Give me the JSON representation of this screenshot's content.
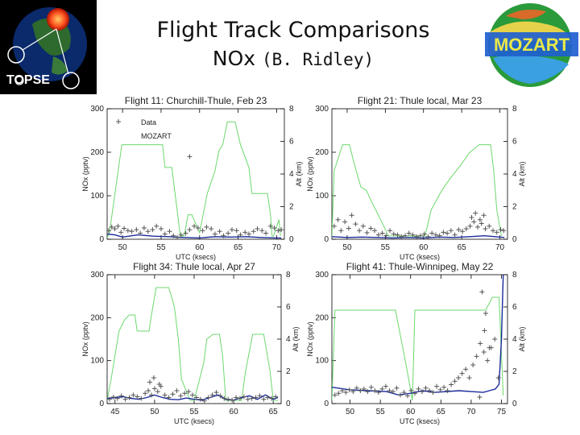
{
  "slide": {
    "title": "Flight Track Comparisons",
    "subtitle_main": "NOx",
    "subtitle_author": "(B. Ridley)"
  },
  "logos": {
    "left_text": "TOPSE",
    "right_text": "MOZART"
  },
  "colors": {
    "data_marker": "#555555",
    "mozart_line": "#1a2a9a",
    "altitude_line": "#6cd96c",
    "axis": "#000000"
  },
  "chart_data": [
    {
      "type": "line",
      "title": "Flight 11: Churchill-Thule, Feb 23",
      "xlabel": "UTC (ksecs)",
      "ylabel": "NOx (pptv)",
      "y2label": "Alt (km)",
      "xlim": [
        48,
        71
      ],
      "ylim": [
        0,
        300
      ],
      "y2lim": [
        0,
        8
      ],
      "xticks": [
        50,
        55,
        60,
        65,
        70
      ],
      "yticks": [
        0,
        100,
        200,
        300
      ],
      "y2ticks": [
        0,
        2,
        4,
        6,
        8
      ],
      "legend": [
        "Data",
        "MOZART"
      ],
      "series": [
        {
          "name": "Altitude",
          "axis": "y2",
          "x": [
            48,
            48.3,
            49.9,
            53.5,
            55.2,
            55.5,
            56.4,
            57.5,
            58,
            58.5,
            59,
            60,
            61,
            62,
            62.5,
            63,
            63.6,
            64.6,
            65.3,
            66.4,
            66.8,
            67.5,
            68.8,
            69.2,
            69.4,
            69.6,
            70.3,
            70.5
          ],
          "values": [
            0.1,
            0.4,
            5.8,
            5.8,
            5.8,
            4.4,
            4.4,
            0.2,
            0.2,
            1.5,
            1.5,
            0.4,
            2.8,
            4.2,
            5.4,
            5.8,
            7.2,
            7.2,
            5.8,
            4.4,
            2.8,
            2.8,
            2.8,
            1.5,
            0.2,
            0.2,
            1.2,
            0.2
          ]
        },
        {
          "name": "MOZART",
          "axis": "y",
          "x": [
            48,
            49,
            50,
            52,
            54,
            56,
            58,
            60,
            62,
            64,
            66,
            68,
            70,
            70.6
          ],
          "values": [
            12,
            10,
            5,
            10,
            7,
            6,
            4,
            3,
            6,
            5,
            6,
            4,
            3,
            3
          ]
        },
        {
          "name": "Data",
          "axis": "y",
          "kind": "scatter",
          "x": [
            48.2,
            48.6,
            49.0,
            49.4,
            49.8,
            50.2,
            50.7,
            51.2,
            51.8,
            52.3,
            52.8,
            53.3,
            53.9,
            54.4,
            55.0,
            55.5,
            56.1,
            56.6,
            57.1,
            57.6,
            58.2,
            58.7,
            59.3,
            59.8,
            60.4,
            60.9,
            61.5,
            62.0,
            62.6,
            63.1,
            63.7,
            64.2,
            64.8,
            65.3,
            65.9,
            66.4,
            67.0,
            67.5,
            68.1,
            68.6,
            69.2,
            69.7,
            70.2,
            70.6,
            58.7
          ],
          "values": [
            20,
            28,
            24,
            30,
            16,
            25,
            20,
            18,
            22,
            14,
            26,
            18,
            22,
            30,
            24,
            12,
            18,
            8,
            4,
            10,
            14,
            22,
            30,
            26,
            20,
            28,
            24,
            12,
            18,
            8,
            14,
            22,
            20,
            10,
            16,
            12,
            18,
            24,
            20,
            14,
            30,
            26,
            20,
            22,
            190
          ]
        }
      ]
    },
    {
      "type": "line",
      "title": "Flight 21: Thule local, Mar 23",
      "xlabel": "UTC (ksecs)",
      "ylabel": "NOx (pptv)",
      "y2label": "Alt (km)",
      "xlim": [
        48,
        71
      ],
      "ylim": [
        0,
        300
      ],
      "y2lim": [
        0,
        8
      ],
      "xticks": [
        50,
        55,
        60,
        65,
        70
      ],
      "yticks": [
        0,
        100,
        200,
        300
      ],
      "y2ticks": [
        0,
        2,
        4,
        6,
        8
      ],
      "legend": [],
      "series": [
        {
          "name": "Altitude",
          "axis": "y2",
          "x": [
            48,
            48.3,
            49.4,
            50.3,
            51,
            51.8,
            52.5,
            53.2,
            54.6,
            55.4,
            56,
            60.2,
            61,
            62.4,
            63.6,
            64.8,
            66,
            67.3,
            68.8,
            69.2,
            69.6,
            70.2
          ],
          "values": [
            0.1,
            4.2,
            5.8,
            5.8,
            4.5,
            3.2,
            3.0,
            2.3,
            1.0,
            0.2,
            0.2,
            0.2,
            1.8,
            3.0,
            3.8,
            4.5,
            5.3,
            5.8,
            5.8,
            4.2,
            1.8,
            0.2
          ]
        },
        {
          "name": "MOZART",
          "axis": "y",
          "x": [
            48,
            50,
            52,
            54,
            56,
            58,
            60,
            62,
            64,
            66,
            68,
            70,
            70.6
          ],
          "values": [
            6,
            4,
            5,
            4,
            3,
            4,
            3,
            5,
            4,
            6,
            8,
            5,
            4
          ]
        },
        {
          "name": "Data",
          "axis": "y",
          "kind": "scatter",
          "x": [
            48.3,
            48.8,
            49.2,
            49.7,
            50.2,
            50.6,
            51.1,
            51.6,
            52.1,
            52.6,
            53.1,
            53.6,
            54.1,
            54.6,
            55.1,
            55.6,
            56.1,
            56.6,
            57.1,
            57.6,
            58.1,
            58.6,
            59.1,
            59.6,
            60.1,
            60.6,
            61.1,
            61.6,
            62.1,
            62.6,
            63.1,
            63.6,
            64.1,
            64.6,
            65.1,
            65.6,
            66.1,
            66.6,
            67.1,
            67.6,
            68.1,
            68.6,
            69.1,
            69.6,
            70.1,
            70.5,
            66.3,
            66.8,
            67.4,
            67.9
          ],
          "values": [
            30,
            45,
            20,
            40,
            25,
            55,
            35,
            20,
            30,
            15,
            25,
            20,
            10,
            14,
            8,
            20,
            12,
            10,
            6,
            8,
            14,
            10,
            6,
            8,
            12,
            6,
            14,
            10,
            8,
            16,
            14,
            20,
            10,
            22,
            18,
            24,
            30,
            40,
            28,
            36,
            24,
            30,
            20,
            16,
            22,
            20,
            50,
            60,
            45,
            55
          ]
        }
      ]
    },
    {
      "type": "line",
      "title": "Flight 34: Thule local, Apr 27",
      "xlabel": "UTC (ksecs)",
      "ylabel": "NOx (pptv)",
      "y2label": "Alt (km)",
      "xlim": [
        44,
        66
      ],
      "ylim": [
        0,
        300
      ],
      "y2lim": [
        0,
        8
      ],
      "xticks": [
        45,
        50,
        55,
        60,
        65
      ],
      "yticks": [
        0,
        100,
        200,
        300
      ],
      "y2ticks": [
        0,
        2,
        4,
        6,
        8
      ],
      "legend": [],
      "series": [
        {
          "name": "Altitude",
          "axis": "y2",
          "x": [
            44,
            44.5,
            45.5,
            46.2,
            46.8,
            47.5,
            47.8,
            49.3,
            49.6,
            50.2,
            51.8,
            52.5,
            53,
            53.4,
            54.5,
            55.0,
            56.2,
            56.6,
            57.4,
            58.2,
            58.6,
            59.0,
            61.0,
            61.5,
            62.4,
            62.9,
            63.8,
            64.6,
            65.0,
            65.6
          ],
          "values": [
            0.2,
            1.5,
            4.5,
            5.2,
            5.5,
            5.5,
            4.5,
            4.5,
            5.5,
            7.2,
            7.2,
            6.0,
            4.0,
            1.5,
            0.2,
            0.2,
            2.5,
            4.0,
            4.3,
            4.3,
            3.0,
            0.2,
            0.2,
            2.0,
            4.3,
            4.3,
            4.3,
            2.0,
            0.2,
            0.2
          ]
        },
        {
          "name": "MOZART",
          "axis": "y",
          "x": [
            44,
            45,
            46,
            47,
            48,
            49,
            50,
            51,
            52,
            53,
            54,
            55,
            56,
            57,
            58,
            59,
            60,
            61,
            62,
            63,
            64,
            65,
            65.6
          ],
          "values": [
            12,
            14,
            16,
            12,
            10,
            14,
            20,
            14,
            10,
            9,
            13,
            10,
            8,
            14,
            20,
            10,
            8,
            14,
            18,
            10,
            20,
            10,
            14
          ]
        },
        {
          "name": "Data",
          "axis": "y",
          "kind": "scatter",
          "x": [
            44.3,
            44.8,
            45.3,
            45.8,
            46.3,
            46.8,
            47.3,
            47.8,
            48.3,
            48.8,
            49.2,
            49.6,
            50.0,
            50.4,
            50.8,
            51.3,
            51.8,
            52.3,
            52.8,
            53.3,
            53.8,
            54.3,
            54.8,
            55.3,
            55.8,
            56.3,
            56.8,
            57.3,
            57.8,
            58.3,
            58.8,
            59.3,
            59.8,
            60.3,
            60.8,
            61.3,
            61.8,
            62.3,
            62.8,
            63.3,
            63.8,
            64.3,
            64.8,
            65.3,
            49.4,
            49.9,
            50.6
          ],
          "values": [
            10,
            15,
            12,
            18,
            10,
            14,
            20,
            16,
            12,
            24,
            30,
            20,
            35,
            28,
            40,
            20,
            14,
            22,
            30,
            18,
            24,
            28,
            20,
            14,
            10,
            6,
            14,
            20,
            26,
            18,
            12,
            10,
            8,
            14,
            12,
            16,
            10,
            12,
            14,
            18,
            10,
            14,
            12,
            16,
            50,
            60,
            45
          ]
        }
      ]
    },
    {
      "type": "line",
      "title": "Flight 41: Thule-Winnipeg, May 22",
      "xlabel": "UTC (ksecs)",
      "ylabel": "NOx (pptv)",
      "y2label": "Alt (km)",
      "xlim": [
        47,
        76
      ],
      "ylim": [
        0,
        300
      ],
      "y2lim": [
        0,
        8
      ],
      "xticks": [
        50,
        55,
        60,
        65,
        70,
        75
      ],
      "yticks": [
        0,
        100,
        200,
        300
      ],
      "y2ticks": [
        0,
        2,
        4,
        6,
        8
      ],
      "legend": [],
      "series": [
        {
          "name": "Altitude",
          "axis": "y2",
          "x": [
            47,
            47.5,
            49.0,
            55.4,
            56.5,
            57.5,
            59.3,
            60.3,
            60.7,
            63.5,
            64.8,
            69.8,
            71,
            72.4,
            73.5,
            74.6,
            75.3
          ],
          "values": [
            0.2,
            5.8,
            5.8,
            5.8,
            5.8,
            5.8,
            2.3,
            0.2,
            5.8,
            5.8,
            5.8,
            5.8,
            5.8,
            5.8,
            6.6,
            6.6,
            0.5
          ]
        },
        {
          "name": "MOZART",
          "axis": "y",
          "x": [
            47,
            50,
            53,
            56,
            58,
            60,
            62,
            64,
            66,
            68,
            70,
            72,
            73,
            74,
            74.6,
            75.0,
            75.3
          ],
          "values": [
            38,
            32,
            30,
            28,
            20,
            24,
            30,
            26,
            28,
            30,
            28,
            26,
            30,
            34,
            45,
            150,
            300
          ]
        },
        {
          "name": "Data",
          "axis": "y",
          "kind": "scatter",
          "x": [
            47.5,
            48.1,
            48.7,
            49.3,
            49.9,
            50.5,
            51.1,
            51.7,
            52.3,
            52.9,
            53.5,
            54.1,
            54.7,
            55.3,
            55.9,
            56.5,
            57.1,
            57.7,
            58.3,
            58.9,
            59.5,
            60.1,
            60.7,
            61.3,
            61.9,
            62.5,
            63.1,
            63.7,
            64.3,
            64.9,
            65.5,
            66.1,
            66.7,
            67.3,
            67.9,
            68.5,
            69.1,
            69.7,
            70.3,
            70.9,
            71.5,
            72.1,
            72.7,
            73.3,
            73.9,
            74.5,
            71.8,
            72.4,
            73.0,
            72.2,
            71.4
          ],
          "values": [
            20,
            24,
            30,
            26,
            32,
            28,
            36,
            30,
            34,
            28,
            38,
            30,
            26,
            34,
            40,
            30,
            28,
            36,
            20,
            26,
            18,
            30,
            24,
            34,
            28,
            36,
            30,
            26,
            40,
            32,
            38,
            30,
            44,
            52,
            60,
            70,
            80,
            60,
            90,
            110,
            140,
            120,
            100,
            130,
            150,
            60,
            260,
            210,
            130,
            170,
            15
          ]
        }
      ]
    }
  ]
}
